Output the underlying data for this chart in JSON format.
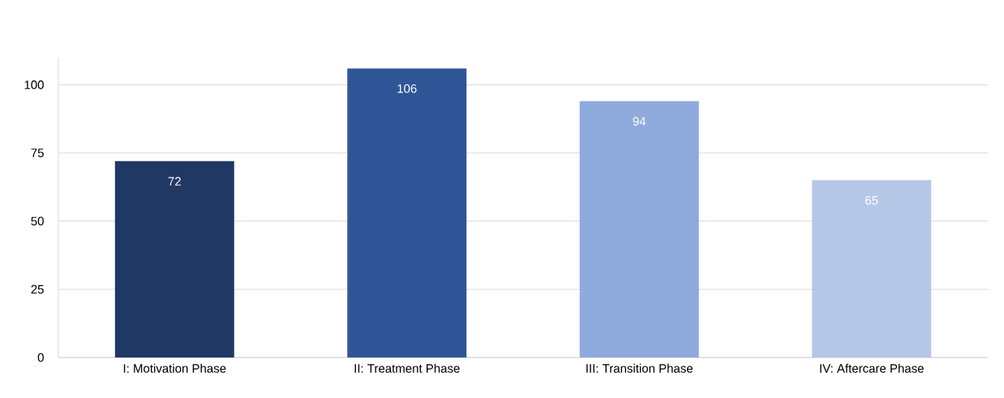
{
  "chart_data": {
    "type": "bar",
    "categories": [
      "I: Motivation Phase",
      "II: Treatment Phase",
      "III: Transition Phase",
      "IV: Aftercare Phase"
    ],
    "values": [
      72,
      106,
      94,
      65
    ],
    "colors": [
      "#203864",
      "#2f5597",
      "#8faadc",
      "#b4c7e7"
    ],
    "ylim": [
      0,
      110
    ],
    "yticks": [
      0,
      25,
      50,
      75,
      100
    ],
    "grid": "y",
    "data_labels": true
  }
}
